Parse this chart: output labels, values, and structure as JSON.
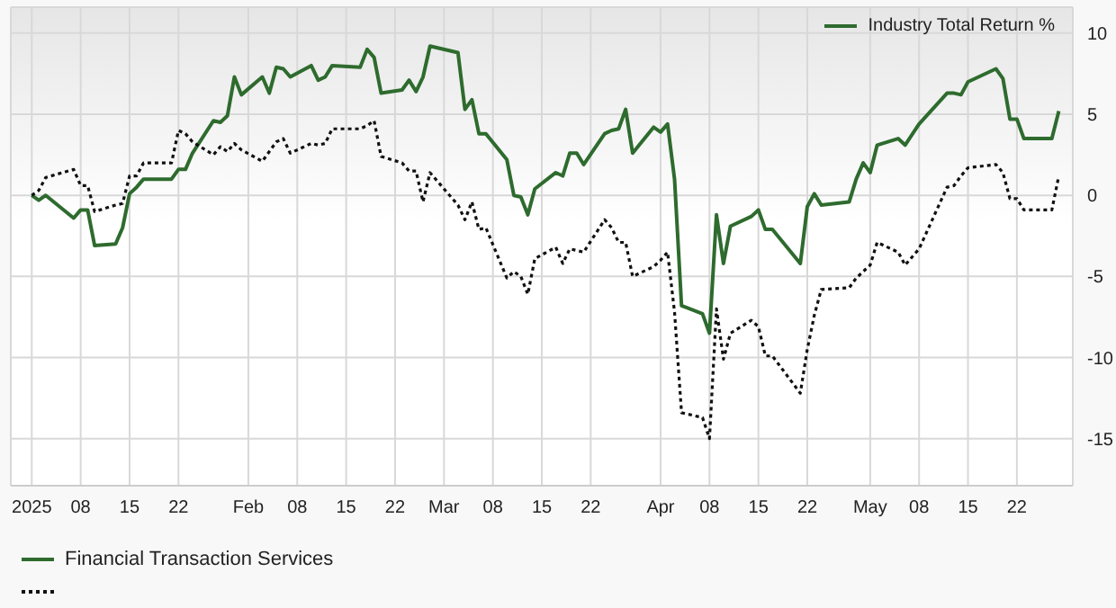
{
  "chart_data": {
    "type": "line",
    "ylabel": "Industry Total Return %",
    "legend": "bottom",
    "grid": true,
    "marker": "none",
    "x": [
      "2025-01-01",
      "2025-01-02",
      "2025-01-03",
      "2025-01-07",
      "2025-01-08",
      "2025-01-09",
      "2025-01-10",
      "2025-01-13",
      "2025-01-14",
      "2025-01-15",
      "2025-01-16",
      "2025-01-17",
      "2025-01-21",
      "2025-01-22",
      "2025-01-23",
      "2025-01-24",
      "2025-01-27",
      "2025-01-28",
      "2025-01-29",
      "2025-01-30",
      "2025-01-31",
      "2025-02-03",
      "2025-02-04",
      "2025-02-05",
      "2025-02-06",
      "2025-02-07",
      "2025-02-10",
      "2025-02-11",
      "2025-02-12",
      "2025-02-13",
      "2025-02-17",
      "2025-02-18",
      "2025-02-19",
      "2025-02-20",
      "2025-02-23",
      "2025-02-24",
      "2025-02-25",
      "2025-02-26",
      "2025-02-27",
      "2025-03-03",
      "2025-03-04",
      "2025-03-05",
      "2025-03-06",
      "2025-03-07",
      "2025-03-10",
      "2025-03-11",
      "2025-03-12",
      "2025-03-13",
      "2025-03-14",
      "2025-03-17",
      "2025-03-18",
      "2025-03-19",
      "2025-03-20",
      "2025-03-21",
      "2025-03-24",
      "2025-03-25",
      "2025-03-26",
      "2025-03-27",
      "2025-03-28",
      "2025-03-31",
      "2025-04-01",
      "2025-04-02",
      "2025-04-03",
      "2025-04-04",
      "2025-04-07",
      "2025-04-08",
      "2025-04-09",
      "2025-04-10",
      "2025-04-11",
      "2025-04-14",
      "2025-04-15",
      "2025-04-16",
      "2025-04-17",
      "2025-04-21",
      "2025-04-22",
      "2025-04-23",
      "2025-04-24",
      "2025-04-28",
      "2025-04-29",
      "2025-04-30",
      "2025-05-01",
      "2025-05-02",
      "2025-05-05",
      "2025-05-06",
      "2025-05-08",
      "2025-05-12",
      "2025-05-13",
      "2025-05-14",
      "2025-05-15",
      "2025-05-19",
      "2025-05-20",
      "2025-05-21",
      "2025-05-22",
      "2025-05-23",
      "2025-05-27",
      "2025-05-28"
    ],
    "xlim": [
      "2024-12-29",
      "2025-05-30"
    ],
    "xticks": [
      {
        "value": "2025-01-01",
        "label": "2025"
      },
      {
        "value": "2025-01-08",
        "label": "08"
      },
      {
        "value": "2025-01-15",
        "label": "15"
      },
      {
        "value": "2025-01-22",
        "label": "22"
      },
      {
        "value": "2025-02-01",
        "label": "Feb"
      },
      {
        "value": "2025-02-08",
        "label": "08"
      },
      {
        "value": "2025-02-15",
        "label": "15"
      },
      {
        "value": "2025-02-22",
        "label": "22"
      },
      {
        "value": "2025-03-01",
        "label": "Mar"
      },
      {
        "value": "2025-03-08",
        "label": "08"
      },
      {
        "value": "2025-03-15",
        "label": "15"
      },
      {
        "value": "2025-03-22",
        "label": "22"
      },
      {
        "value": "2025-04-01",
        "label": "Apr"
      },
      {
        "value": "2025-04-08",
        "label": "08"
      },
      {
        "value": "2025-04-15",
        "label": "15"
      },
      {
        "value": "2025-04-22",
        "label": "22"
      },
      {
        "value": "2025-05-01",
        "label": "May"
      },
      {
        "value": "2025-05-08",
        "label": "08"
      },
      {
        "value": "2025-05-15",
        "label": "15"
      },
      {
        "value": "2025-05-22",
        "label": "22"
      }
    ],
    "ylim": [
      -17.9,
      11.6
    ],
    "yticks": [
      -15,
      -10,
      -5,
      0,
      5,
      10
    ],
    "series": [
      {
        "name": "Financial Transaction Services",
        "color": "#2e6b2e",
        "line_style": "solid",
        "values": [
          0,
          -0.3,
          0,
          -1.4,
          -0.9,
          -0.9,
          -3.1,
          -3.0,
          -2.0,
          0.1,
          0.5,
          1.0,
          1.0,
          1.6,
          1.6,
          2.6,
          4.6,
          4.5,
          4.9,
          7.3,
          6.2,
          7.3,
          6.3,
          7.9,
          7.8,
          7.3,
          8.0,
          7.1,
          7.3,
          8.0,
          7.9,
          9.0,
          8.5,
          6.3,
          6.5,
          7.1,
          6.4,
          7.3,
          9.2,
          8.8,
          5.3,
          5.9,
          3.8,
          3.8,
          2.2,
          0.0,
          -0.1,
          -1.2,
          0.4,
          1.4,
          1.2,
          2.6,
          2.6,
          1.9,
          3.8,
          4.0,
          4.1,
          5.3,
          2.6,
          4.2,
          3.9,
          4.4,
          1.0,
          -6.8,
          -7.3,
          -8.5,
          -1.2,
          -4.2,
          -1.9,
          -1.3,
          -0.9,
          -2.1,
          -2.1,
          -4.2,
          -0.7,
          0.1,
          -0.6,
          -0.4,
          1.0,
          2.0,
          1.4,
          3.1,
          3.5,
          3.1,
          4.4,
          6.3,
          6.3,
          6.2,
          7.0,
          7.8,
          7.2,
          4.7,
          4.7,
          3.5,
          3.5,
          5.2
        ]
      },
      {
        "color": "#111111",
        "line_style": "dotted",
        "values": [
          0,
          0.3,
          1.1,
          1.6,
          0.6,
          0.6,
          -1.0,
          -0.6,
          -0.5,
          1.2,
          1.2,
          2.0,
          2.0,
          4.0,
          3.8,
          3.3,
          2.5,
          3.0,
          2.7,
          3.2,
          2.8,
          2.1,
          2.7,
          3.3,
          3.5,
          2.6,
          3.2,
          3.1,
          3.2,
          4.1,
          4.1,
          4.3,
          4.6,
          2.4,
          2.0,
          1.5,
          1.5,
          -0.4,
          1.4,
          -0.6,
          -1.5,
          -0.4,
          -2.1,
          -2.0,
          -5.1,
          -4.7,
          -5.0,
          -6.1,
          -3.9,
          -3.2,
          -4.2,
          -3.3,
          -3.4,
          -3.5,
          -1.5,
          -2.0,
          -2.9,
          -2.9,
          -5.0,
          -4.4,
          -4.0,
          -3.5,
          -7.2,
          -13.4,
          -13.7,
          -15.0,
          -7.0,
          -10.1,
          -8.5,
          -7.7,
          -8.1,
          -9.9,
          -9.9,
          -12.2,
          -9.5,
          -7.4,
          -5.8,
          -5.7,
          -5.1,
          -4.7,
          -4.3,
          -2.9,
          -3.5,
          -4.3,
          -3.3,
          0.5,
          0.6,
          1.2,
          1.7,
          1.9,
          1.4,
          -0.2,
          -0.2,
          -0.9,
          -0.9,
          1.2
        ]
      }
    ]
  }
}
